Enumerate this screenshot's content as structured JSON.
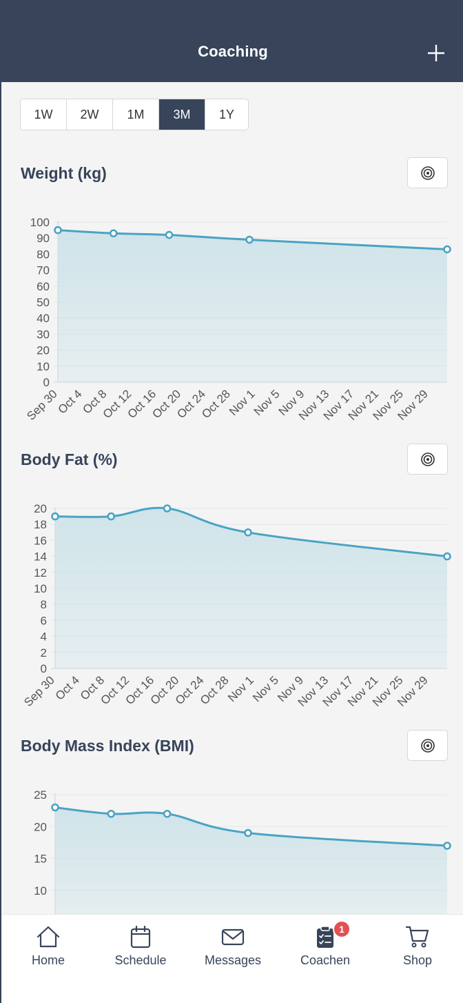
{
  "header": {
    "title": "Coaching"
  },
  "range_options": [
    "1W",
    "2W",
    "1M",
    "3M",
    "1Y"
  ],
  "range_selected": "3M",
  "colors": {
    "header_bg": "#37445a",
    "line": "#4aa3c3",
    "fill": "#cde3e9",
    "grid": "#dfe7e9",
    "badge": "#e05252"
  },
  "sections": {
    "weight": {
      "title": "Weight (kg)"
    },
    "body_fat": {
      "title": "Body Fat (%)"
    },
    "bmi": {
      "title": "Body Mass Index (BMI)"
    }
  },
  "chart_data": [
    {
      "type": "area",
      "title": "Weight (kg)",
      "x_ticks": [
        "Sep 30",
        "Oct 4",
        "Oct 8",
        "Oct 12",
        "Oct 16",
        "Oct 20",
        "Oct 24",
        "Oct 28",
        "Nov 1",
        "Nov 5",
        "Nov 9",
        "Nov 13",
        "Nov 17",
        "Nov 21",
        "Nov 25",
        "Nov 29"
      ],
      "y_ticks": [
        0,
        10,
        20,
        30,
        40,
        50,
        60,
        70,
        80,
        90,
        100
      ],
      "ylim": [
        0,
        100
      ],
      "points": [
        {
          "day": 0,
          "value": 95
        },
        {
          "day": 9,
          "value": 93
        },
        {
          "day": 18,
          "value": 92
        },
        {
          "day": 31,
          "value": 89
        },
        {
          "day": 63,
          "value": 83
        }
      ]
    },
    {
      "type": "area",
      "title": "Body Fat (%)",
      "x_ticks": [
        "Sep 30",
        "Oct 4",
        "Oct 8",
        "Oct 12",
        "Oct 16",
        "Oct 20",
        "Oct 24",
        "Oct 28",
        "Nov 1",
        "Nov 5",
        "Nov 9",
        "Nov 13",
        "Nov 17",
        "Nov 21",
        "Nov 25",
        "Nov 29"
      ],
      "y_ticks": [
        0,
        2,
        4,
        6,
        8,
        10,
        12,
        14,
        16,
        18,
        20
      ],
      "ylim": [
        0,
        20
      ],
      "points": [
        {
          "day": 0,
          "value": 19
        },
        {
          "day": 9,
          "value": 19
        },
        {
          "day": 18,
          "value": 20
        },
        {
          "day": 31,
          "value": 17
        },
        {
          "day": 63,
          "value": 14
        }
      ]
    },
    {
      "type": "area",
      "title": "Body Mass Index (BMI)",
      "y_ticks": [
        10,
        15,
        20,
        25
      ],
      "ylim": [
        5,
        25
      ],
      "points": [
        {
          "day": 0,
          "value": 23
        },
        {
          "day": 9,
          "value": 22
        },
        {
          "day": 18,
          "value": 22
        },
        {
          "day": 31,
          "value": 19
        },
        {
          "day": 63,
          "value": 17
        }
      ]
    }
  ],
  "tabs": [
    {
      "label": "Home",
      "icon": "home-icon"
    },
    {
      "label": "Schedule",
      "icon": "calendar-icon"
    },
    {
      "label": "Messages",
      "icon": "envelope-icon"
    },
    {
      "label": "Coachen",
      "icon": "clipboard-icon",
      "badge": "1"
    },
    {
      "label": "Shop",
      "icon": "cart-icon"
    }
  ]
}
